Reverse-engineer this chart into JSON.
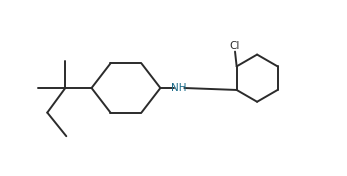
{
  "bg_color": "#ffffff",
  "line_color": "#2b2b2b",
  "line_width": 1.4,
  "nh_color": "#1a6b8a",
  "cl_color": "#2b2b2b",
  "figsize": [
    3.47,
    1.76
  ],
  "dpi": 100,
  "xlim": [
    0.0,
    10.5
  ],
  "ylim": [
    0.5,
    5.5
  ]
}
